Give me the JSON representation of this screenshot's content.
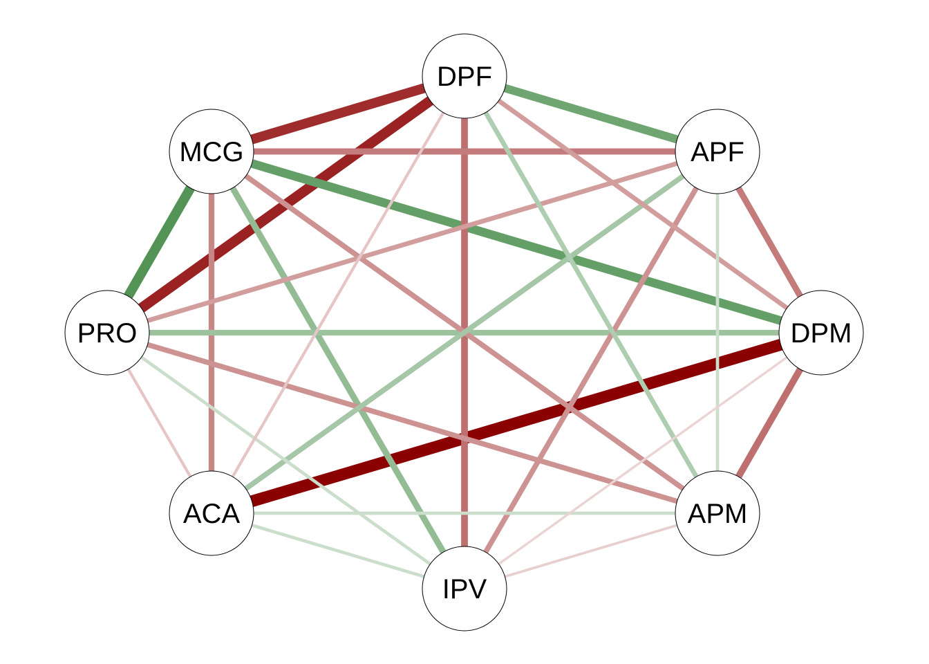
{
  "network": {
    "colors": {
      "positive": "#2E7D32",
      "negative": "#8B0000",
      "node_fill": "#FFFFFF",
      "node_stroke": "#000000"
    },
    "nodes": [
      {
        "id": "DPF",
        "label": "DPF"
      },
      {
        "id": "APF",
        "label": "APF"
      },
      {
        "id": "DPM",
        "label": "DPM"
      },
      {
        "id": "APM",
        "label": "APM"
      },
      {
        "id": "IPV",
        "label": "IPV"
      },
      {
        "id": "ACA",
        "label": "ACA"
      },
      {
        "id": "PRO",
        "label": "PRO"
      },
      {
        "id": "MCG",
        "label": "MCG"
      }
    ],
    "edges": [
      {
        "from": "ACA",
        "to": "DPM",
        "sign": "negative",
        "weight": 1.0
      },
      {
        "from": "PRO",
        "to": "DPF",
        "sign": "negative",
        "weight": 0.85
      },
      {
        "from": "MCG",
        "to": "DPF",
        "sign": "negative",
        "weight": 0.8
      },
      {
        "from": "PRO",
        "to": "MCG",
        "sign": "positive",
        "weight": 0.8
      },
      {
        "from": "MCG",
        "to": "DPM",
        "sign": "positive",
        "weight": 0.7
      },
      {
        "from": "DPF",
        "to": "APF",
        "sign": "positive",
        "weight": 0.65
      },
      {
        "from": "DPF",
        "to": "IPV",
        "sign": "negative",
        "weight": 0.5
      },
      {
        "from": "DPM",
        "to": "APM",
        "sign": "negative",
        "weight": 0.5
      },
      {
        "from": "MCG",
        "to": "APF",
        "sign": "negative",
        "weight": 0.45
      },
      {
        "from": "APF",
        "to": "DPM",
        "sign": "negative",
        "weight": 0.45
      },
      {
        "from": "MCG",
        "to": "IPV",
        "sign": "positive",
        "weight": 0.45
      },
      {
        "from": "MCG",
        "to": "ACA",
        "sign": "negative",
        "weight": 0.4
      },
      {
        "from": "PRO",
        "to": "DPM",
        "sign": "positive",
        "weight": 0.4
      },
      {
        "from": "MCG",
        "to": "APM",
        "sign": "negative",
        "weight": 0.35
      },
      {
        "from": "PRO",
        "to": "APM",
        "sign": "negative",
        "weight": 0.35
      },
      {
        "from": "APF",
        "to": "IPV",
        "sign": "negative",
        "weight": 0.35
      },
      {
        "from": "APF",
        "to": "ACA",
        "sign": "positive",
        "weight": 0.35
      },
      {
        "from": "PRO",
        "to": "APF",
        "sign": "negative",
        "weight": 0.3
      },
      {
        "from": "DPF",
        "to": "DPM",
        "sign": "negative",
        "weight": 0.3
      },
      {
        "from": "DPF",
        "to": "APM",
        "sign": "positive",
        "weight": 0.3
      },
      {
        "from": "APF",
        "to": "APM",
        "sign": "positive",
        "weight": 0.15
      },
      {
        "from": "ACA",
        "to": "APM",
        "sign": "positive",
        "weight": 0.15
      },
      {
        "from": "ACA",
        "to": "IPV",
        "sign": "positive",
        "weight": 0.15
      },
      {
        "from": "PRO",
        "to": "IPV",
        "sign": "positive",
        "weight": 0.15
      },
      {
        "from": "DPF",
        "to": "ACA",
        "sign": "negative",
        "weight": 0.12
      },
      {
        "from": "PRO",
        "to": "ACA",
        "sign": "negative",
        "weight": 0.12
      },
      {
        "from": "APM",
        "to": "IPV",
        "sign": "negative",
        "weight": 0.08
      },
      {
        "from": "DPM",
        "to": "IPV",
        "sign": "negative",
        "weight": 0.06
      }
    ]
  }
}
